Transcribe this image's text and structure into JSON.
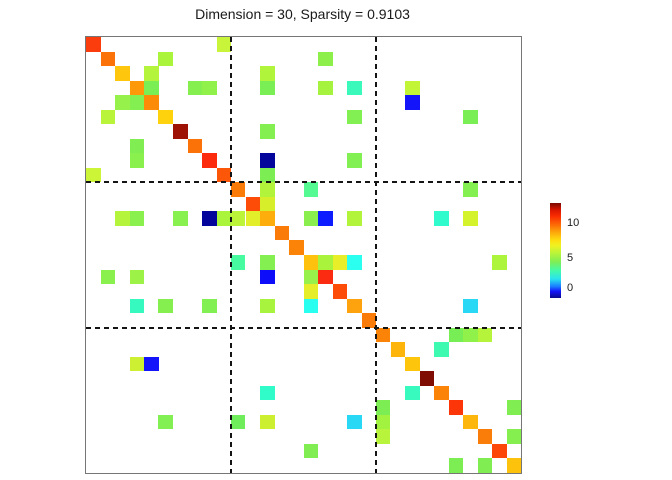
{
  "figure": {
    "background": "#ffffff",
    "title": "Dimension = 30, Sparsity = 0.9103"
  },
  "chart_data": {
    "type": "heatmap",
    "title": "Dimension = 30, Sparsity = 0.9103",
    "dimension": 30,
    "sparsity": 0.9103,
    "grid": {
      "rows": 30,
      "cols": 30,
      "gridlines": false,
      "axis_tick_labels": false
    },
    "empty_color": "#ffffff",
    "block_boundaries": [
      10,
      20
    ],
    "block_line_style": "dashed-black",
    "colorbar": {
      "position": "right",
      "colormap": "jet",
      "range_estimate": [
        -2,
        14.5
      ],
      "ticks": [
        {
          "value": 10,
          "label": "10"
        },
        {
          "value": 5,
          "label": "5"
        },
        {
          "value": 0,
          "label": "0"
        }
      ],
      "gradient_stops_top_to_bottom": [
        "#7a0a03 0%",
        "#d61501 7%",
        "#fa2d00 14%",
        "#fc6c06 23%",
        "#fda90b 31%",
        "#fedd10 39%",
        "#eef222 45%",
        "#b8f43a 53%",
        "#7fee55 62%",
        "#44faa8 71%",
        "#2ae3ef 80%",
        "#1a7bff 88%",
        "#1414fa 93%",
        "#0a0a8c 100%"
      ]
    },
    "cells_format": [
      "row",
      "col",
      "value_estimate",
      "color"
    ],
    "cells": [
      [
        0,
        0,
        11.0,
        "#fb3c0d"
      ],
      [
        0,
        9,
        5.5,
        "#c8f53a"
      ],
      [
        1,
        1,
        10.0,
        "#fb7209"
      ],
      [
        1,
        5,
        4.9,
        "#aaf43c"
      ],
      [
        1,
        16,
        4.4,
        "#8df04a"
      ],
      [
        2,
        2,
        8.4,
        "#fec60d"
      ],
      [
        2,
        4,
        5.0,
        "#b4f43c"
      ],
      [
        2,
        12,
        5.0,
        "#b0f43c"
      ],
      [
        3,
        3,
        9.6,
        "#fd9808"
      ],
      [
        3,
        4,
        3.9,
        "#79ee55"
      ],
      [
        3,
        7,
        4.2,
        "#86ef50"
      ],
      [
        3,
        8,
        4.4,
        "#90f14b"
      ],
      [
        3,
        12,
        3.9,
        "#79ee55"
      ],
      [
        3,
        16,
        4.8,
        "#a5f33e"
      ],
      [
        3,
        18,
        1.5,
        "#3bf8bb"
      ],
      [
        3,
        22,
        5.4,
        "#c3f537"
      ],
      [
        4,
        2,
        4.5,
        "#96f14a"
      ],
      [
        4,
        3,
        4.2,
        "#84ef51"
      ],
      [
        4,
        4,
        9.8,
        "#fc8c07"
      ],
      [
        4,
        22,
        -1.2,
        "#1414fa"
      ],
      [
        5,
        1,
        5.1,
        "#b9f43b"
      ],
      [
        5,
        5,
        8.2,
        "#fed30d"
      ],
      [
        5,
        18,
        4.1,
        "#82ef52"
      ],
      [
        5,
        26,
        3.9,
        "#79ee55"
      ],
      [
        6,
        6,
        13.3,
        "#9e1205"
      ],
      [
        6,
        12,
        4.2,
        "#84ef51"
      ],
      [
        7,
        3,
        4.0,
        "#80ee53"
      ],
      [
        7,
        7,
        10.0,
        "#fb7209"
      ],
      [
        8,
        3,
        4.3,
        "#8af04e"
      ],
      [
        8,
        8,
        11.6,
        "#fd2b0e"
      ],
      [
        8,
        12,
        -2.0,
        "#04059b"
      ],
      [
        8,
        18,
        4.1,
        "#82ef52"
      ],
      [
        9,
        0,
        5.6,
        "#ccf538"
      ],
      [
        9,
        9,
        10.6,
        "#fc5608"
      ],
      [
        9,
        12,
        4.0,
        "#7cee54"
      ],
      [
        10,
        10,
        10.0,
        "#fb7b09"
      ],
      [
        10,
        12,
        5.0,
        "#b2f43c"
      ],
      [
        10,
        15,
        2.4,
        "#55fb92"
      ],
      [
        10,
        26,
        4.2,
        "#84ef51"
      ],
      [
        11,
        11,
        10.8,
        "#fc4c08"
      ],
      [
        11,
        12,
        5.9,
        "#d6ef2a"
      ],
      [
        12,
        2,
        5.1,
        "#b4f43c"
      ],
      [
        12,
        3,
        4.3,
        "#8af04e"
      ],
      [
        12,
        6,
        4.3,
        "#88f04f"
      ],
      [
        12,
        8,
        -2.0,
        "#04059b"
      ],
      [
        12,
        9,
        4.9,
        "#aaf43c"
      ],
      [
        12,
        10,
        5.3,
        "#bcf43a"
      ],
      [
        12,
        11,
        6.2,
        "#e3ee2a"
      ],
      [
        12,
        12,
        9.1,
        "#feae0c"
      ],
      [
        12,
        15,
        4.3,
        "#8aef4e"
      ],
      [
        12,
        16,
        -1.1,
        "#0d1bff"
      ],
      [
        12,
        18,
        5.0,
        "#b2f43c"
      ],
      [
        12,
        24,
        1.2,
        "#30fbcc"
      ],
      [
        12,
        26,
        5.8,
        "#d4f32c"
      ],
      [
        13,
        13,
        10.0,
        "#fb7b09"
      ],
      [
        14,
        14,
        9.9,
        "#fb8408"
      ],
      [
        15,
        10,
        2.2,
        "#47fba1"
      ],
      [
        15,
        12,
        4.2,
        "#84ef51"
      ],
      [
        15,
        15,
        8.5,
        "#fec10d"
      ],
      [
        15,
        16,
        5.0,
        "#aaf33c"
      ],
      [
        15,
        17,
        6.3,
        "#e8ef29"
      ],
      [
        15,
        18,
        0.8,
        "#2afff0"
      ],
      [
        15,
        28,
        5.0,
        "#adf43c"
      ],
      [
        16,
        1,
        4.3,
        "#8af04e"
      ],
      [
        16,
        3,
        4.6,
        "#9cf246"
      ],
      [
        16,
        12,
        -1.3,
        "#0d0dfa"
      ],
      [
        16,
        15,
        4.6,
        "#98f04a"
      ],
      [
        16,
        16,
        11.3,
        "#fa2b10"
      ],
      [
        17,
        15,
        6.3,
        "#e5ee29"
      ],
      [
        17,
        17,
        10.8,
        "#fc4c08"
      ],
      [
        18,
        3,
        1.4,
        "#36f9c0"
      ],
      [
        18,
        5,
        4.2,
        "#86ef50"
      ],
      [
        18,
        8,
        4.1,
        "#82ef52"
      ],
      [
        18,
        12,
        4.9,
        "#a8f33d"
      ],
      [
        18,
        15,
        0.8,
        "#29fff0"
      ],
      [
        18,
        18,
        9.4,
        "#fea20e"
      ],
      [
        18,
        26,
        0.3,
        "#29d8f5"
      ],
      [
        19,
        19,
        10.0,
        "#fb7b09"
      ],
      [
        20,
        20,
        9.9,
        "#fb8408"
      ],
      [
        20,
        25,
        3.9,
        "#77ee55"
      ],
      [
        20,
        26,
        4.4,
        "#90f14a"
      ],
      [
        20,
        27,
        5.1,
        "#b5f43b"
      ],
      [
        21,
        21,
        9.0,
        "#fdb50b"
      ],
      [
        21,
        24,
        1.8,
        "#3efab0"
      ],
      [
        22,
        3,
        5.7,
        "#cdf132"
      ],
      [
        22,
        4,
        -1.2,
        "#1414fa"
      ],
      [
        22,
        22,
        8.5,
        "#fec50d"
      ],
      [
        23,
        23,
        14.0,
        "#800d04"
      ],
      [
        24,
        12,
        1.2,
        "#2ffcc9"
      ],
      [
        24,
        22,
        1.5,
        "#38f9be"
      ],
      [
        24,
        24,
        9.9,
        "#fb8408"
      ],
      [
        25,
        20,
        4.0,
        "#7cee54"
      ],
      [
        25,
        25,
        11.2,
        "#fc3608"
      ],
      [
        25,
        29,
        4.0,
        "#80ee53"
      ],
      [
        26,
        5,
        4.1,
        "#82ef52"
      ],
      [
        26,
        10,
        3.7,
        "#6fed5a"
      ],
      [
        26,
        12,
        5.7,
        "#ccf02f"
      ],
      [
        26,
        18,
        0.3,
        "#29d8f5"
      ],
      [
        26,
        20,
        4.8,
        "#a2f340"
      ],
      [
        26,
        26,
        9.0,
        "#fdb70c"
      ],
      [
        27,
        20,
        5.2,
        "#b8f43b"
      ],
      [
        27,
        27,
        10.0,
        "#fb7d09"
      ],
      [
        27,
        29,
        4.2,
        "#86ef50"
      ],
      [
        28,
        15,
        4.0,
        "#80ee53"
      ],
      [
        28,
        28,
        10.9,
        "#fc4708"
      ],
      [
        29,
        25,
        4.0,
        "#7cee54"
      ],
      [
        29,
        27,
        4.1,
        "#80ee53"
      ],
      [
        29,
        29,
        8.6,
        "#fdc30c"
      ]
    ]
  }
}
